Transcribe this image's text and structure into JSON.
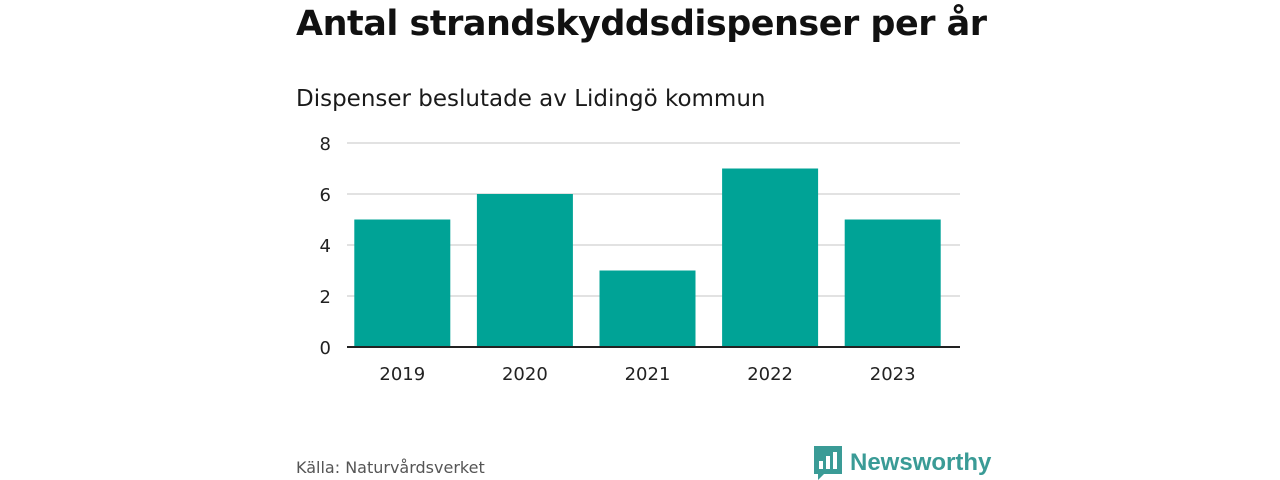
{
  "header": {
    "title": "Antal strandskyddsdispenser per år",
    "subtitle": "Dispenser beslutade av Lidingö kommun"
  },
  "footer": {
    "source": "Källa: Naturvårdsverket",
    "brand_name": "Newsworthy",
    "brand_icon": "newsworthy-logo-icon"
  },
  "colors": {
    "bar": "#00a396",
    "grid": "#d9d9d9",
    "axis": "#222222",
    "brand": "#3a9b96"
  },
  "chart_data": {
    "type": "bar",
    "title": "Antal strandskyddsdispenser per år",
    "subtitle": "Dispenser beslutade av Lidingö kommun",
    "categories": [
      "2019",
      "2020",
      "2021",
      "2022",
      "2023"
    ],
    "values": [
      5,
      6,
      3,
      7,
      5
    ],
    "xlabel": "",
    "ylabel": "",
    "ylim": [
      0,
      8
    ],
    "yticks": [
      0,
      2,
      4,
      6,
      8
    ],
    "grid": true
  }
}
